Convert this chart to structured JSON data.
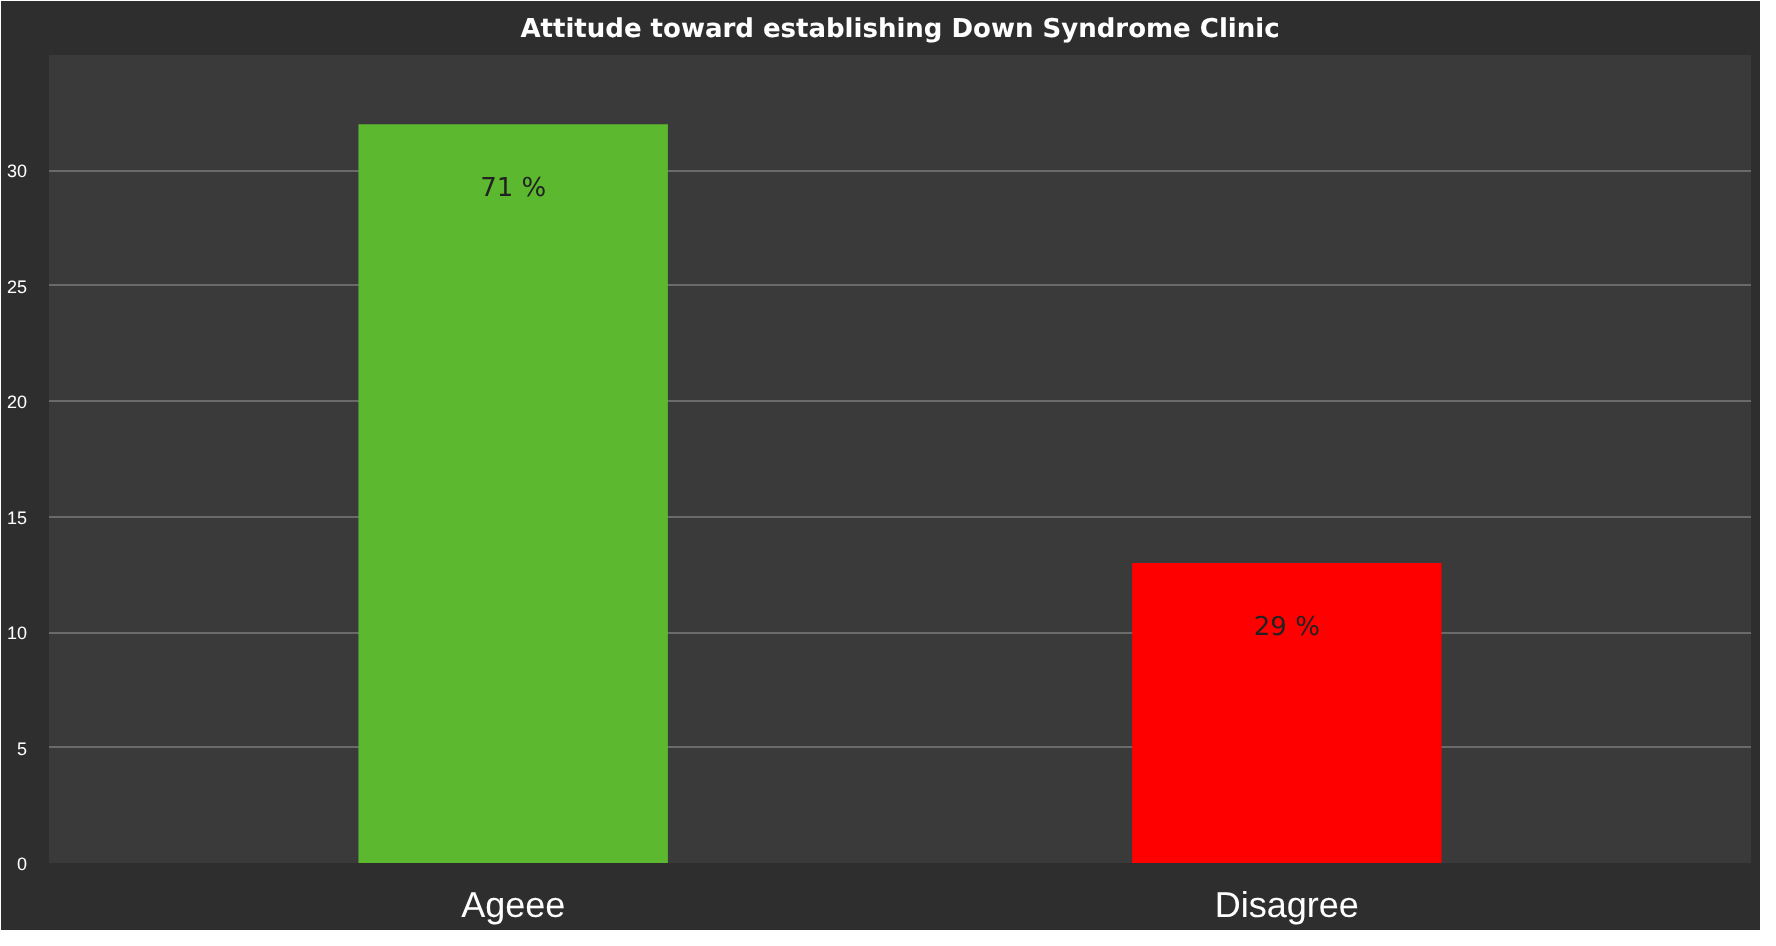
{
  "chart_data": {
    "type": "bar",
    "title": "Attitude toward establishing Down Syndrome Clinic",
    "categories": [
      "Ageee",
      "Disagree"
    ],
    "values": [
      32,
      13
    ],
    "colors": [
      "#5cb82e",
      "#ff0000"
    ],
    "annotations": [
      "71 %",
      "29 %"
    ],
    "ylim": [
      0,
      35
    ],
    "yticks": [
      0,
      5,
      10,
      15,
      20,
      25,
      30,
      {
        "value": 35,
        "label": null
      }
    ],
    "grid": "y"
  }
}
